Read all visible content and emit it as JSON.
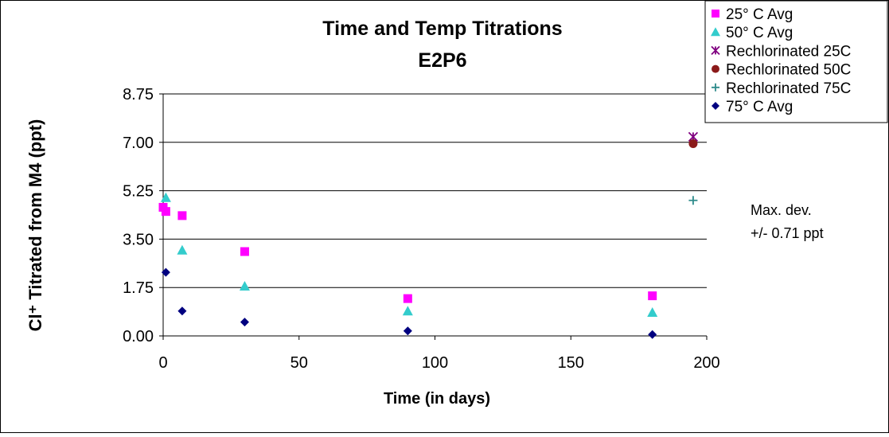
{
  "chart_data": {
    "type": "scatter",
    "title": "Time and Temp Titrations",
    "subtitle": "E2P6",
    "xlabel": "Time (in days)",
    "ylabel": "Cl⁺ Titrated from M4 (ppt)",
    "xlim": [
      0,
      200
    ],
    "ylim": [
      0,
      8.75
    ],
    "x_ticks": [
      0,
      50,
      100,
      150,
      200
    ],
    "x_tick_labels": [
      "0",
      "50",
      "100",
      "150",
      "200"
    ],
    "y_ticks": [
      0,
      1.75,
      3.5,
      5.25,
      7.0,
      8.75
    ],
    "y_tick_labels": [
      "0.00",
      "1.75",
      "3.50",
      "5.25",
      "7.00",
      "8.75"
    ],
    "grid": "horizontal",
    "legend_position": "top-right",
    "annotation": [
      "Max. dev.",
      "+/- 0.71 ppt"
    ],
    "series": [
      {
        "name": "25° C Avg",
        "marker": "square",
        "color": "#ff00ff",
        "points": [
          [
            0,
            4.65
          ],
          [
            1,
            4.5
          ],
          [
            7,
            4.35
          ],
          [
            30,
            3.05
          ],
          [
            90,
            1.35
          ],
          [
            180,
            1.45
          ]
        ]
      },
      {
        "name": "50° C Avg",
        "marker": "triangle",
        "color": "#33cccc",
        "points": [
          [
            1,
            5.0
          ],
          [
            7,
            3.1
          ],
          [
            30,
            1.8
          ],
          [
            90,
            0.9
          ],
          [
            180,
            0.85
          ]
        ]
      },
      {
        "name": "Rechlorinated 25C",
        "marker": "star",
        "color": "#800080",
        "points": [
          [
            195,
            7.2
          ]
        ]
      },
      {
        "name": "Rechlorinated 50C",
        "marker": "circle",
        "color": "#8b1a1a",
        "points": [
          [
            195,
            6.95
          ]
        ]
      },
      {
        "name": "Rechlorinated 75C",
        "marker": "plus",
        "color": "#2e8b8b",
        "points": [
          [
            195,
            4.9
          ]
        ]
      },
      {
        "name": "75° C Avg",
        "marker": "diamond",
        "color": "#000080",
        "points": [
          [
            1,
            2.3
          ],
          [
            7,
            0.9
          ],
          [
            30,
            0.5
          ],
          [
            90,
            0.18
          ],
          [
            180,
            0.05
          ]
        ]
      }
    ]
  }
}
